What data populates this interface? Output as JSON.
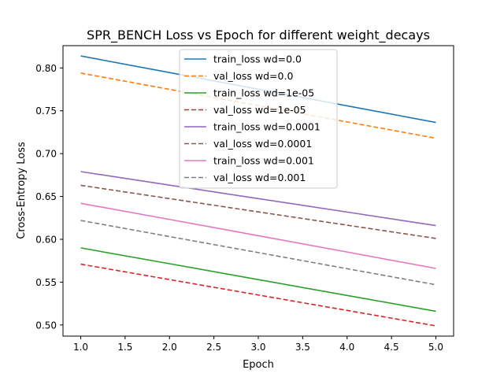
{
  "chart_data": {
    "type": "line",
    "title": "SPR_BENCH Loss vs Epoch for different weight_decays",
    "xlabel": "Epoch",
    "ylabel": "Cross-Entropy Loss",
    "xlim": [
      0.8,
      5.2
    ],
    "ylim": [
      0.487,
      0.826
    ],
    "xticks": [
      "1.0",
      "1.5",
      "2.0",
      "2.5",
      "3.0",
      "3.5",
      "4.0",
      "4.5",
      "5.0"
    ],
    "yticks": [
      "0.50",
      "0.55",
      "0.60",
      "0.65",
      "0.70",
      "0.75",
      "0.80"
    ],
    "legend_position": "top-center",
    "grid": false,
    "x": [
      1,
      2,
      3,
      4,
      5
    ],
    "series": [
      {
        "name": "train_loss wd=0.0",
        "color": "#1f77b4",
        "dashed": false,
        "values": [
          0.814,
          0.7946,
          0.7752,
          0.7558,
          0.7364
        ]
      },
      {
        "name": "val_loss wd=0.0",
        "color": "#ff7f0e",
        "dashed": true,
        "values": [
          0.794,
          0.775,
          0.756,
          0.737,
          0.718
        ]
      },
      {
        "name": "train_loss wd=1e-05",
        "color": "#2ca02c",
        "dashed": false,
        "values": [
          0.59,
          0.5715,
          0.553,
          0.5345,
          0.516
        ]
      },
      {
        "name": "val_loss wd=1e-05",
        "color": "#d62728",
        "dashed": true,
        "values": [
          0.571,
          0.553,
          0.535,
          0.517,
          0.499
        ]
      },
      {
        "name": "train_loss wd=0.0001",
        "color": "#9467bd",
        "dashed": false,
        "values": [
          0.679,
          0.6632,
          0.6475,
          0.6318,
          0.616
        ]
      },
      {
        "name": "val_loss wd=0.0001",
        "color": "#8c564b",
        "dashed": true,
        "values": [
          0.663,
          0.6475,
          0.632,
          0.6165,
          0.601
        ]
      },
      {
        "name": "train_loss wd=0.001",
        "color": "#e377c2",
        "dashed": false,
        "values": [
          0.642,
          0.6232,
          0.6042,
          0.5852,
          0.566
        ]
      },
      {
        "name": "val_loss wd=0.001",
        "color": "#7f7f7f",
        "dashed": true,
        "values": [
          0.622,
          0.6032,
          0.5845,
          0.5657,
          0.547
        ]
      }
    ]
  }
}
